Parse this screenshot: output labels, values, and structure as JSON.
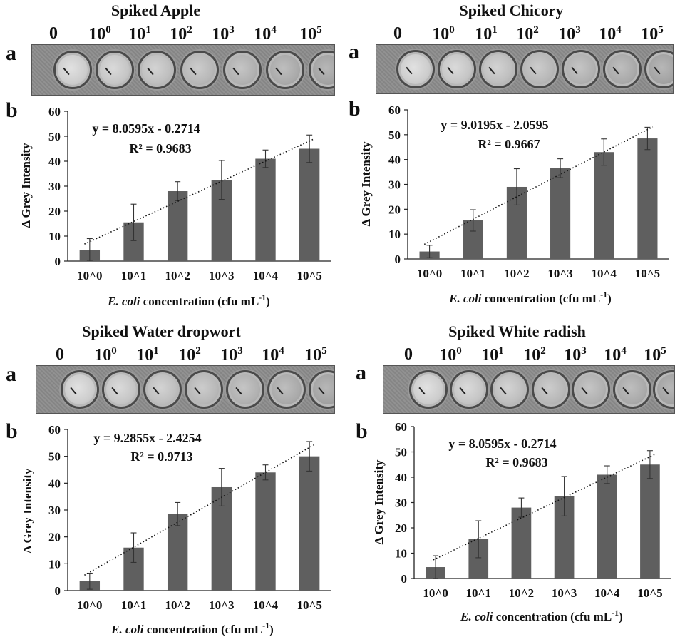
{
  "figure": {
    "letter_a": "a",
    "letter_b": "b",
    "concentration_base": "10",
    "concentration_zero": "0",
    "concentration_exponents": [
      "0",
      "1",
      "2",
      "3",
      "4",
      "5"
    ]
  },
  "chart_data": [
    {
      "type": "bar",
      "title": "Spiked Apple",
      "categories": [
        "10^0",
        "10^1",
        "10^2",
        "10^3",
        "10^4",
        "10^5"
      ],
      "values": [
        4.5,
        15.5,
        28,
        32.5,
        41,
        45
      ],
      "error": [
        4.5,
        7.3,
        3.8,
        7.8,
        3.5,
        5.5
      ],
      "ylim": [
        0,
        60
      ],
      "yticks": [
        "0",
        "10",
        "20",
        "30",
        "40",
        "50",
        "60"
      ],
      "ylabel": "Δ Grey Intensity",
      "xlabel_italic": "E. coli",
      "xlabel_rest": " concentration (cfu mL",
      "xlabel_sup": "-1",
      "xlabel_end": ")",
      "equation": "y = 8.0595x - 0.2714",
      "r_squared": "R² = 0.9683",
      "trend_slope": 8.0595,
      "trend_intercept": -0.2714,
      "bar_color": "#5f5f5f"
    },
    {
      "type": "bar",
      "title": "Spiked Chicory",
      "categories": [
        "10^0",
        "10^1",
        "10^2",
        "10^3",
        "10^4",
        "10^5"
      ],
      "values": [
        3,
        15.5,
        29,
        36.5,
        43,
        48.5
      ],
      "error": [
        2.5,
        4.3,
        7.3,
        3.8,
        5.3,
        4.5
      ],
      "ylim": [
        0,
        60
      ],
      "yticks": [
        "0",
        "10",
        "20",
        "30",
        "40",
        "50",
        "60"
      ],
      "ylabel": "Δ Grey Intensity",
      "xlabel_italic": "E. coli",
      "xlabel_rest": " concentration (cfu mL",
      "xlabel_sup": "-1",
      "xlabel_end": ")",
      "equation": "y = 9.0195x - 2.0595",
      "r_squared": "R² = 0.9667",
      "trend_slope": 9.0195,
      "trend_intercept": -2.0595,
      "bar_color": "#5f5f5f"
    },
    {
      "type": "bar",
      "title": "Spiked Water dropwort",
      "categories": [
        "10^0",
        "10^1",
        "10^2",
        "10^3",
        "10^4",
        "10^5"
      ],
      "values": [
        3.5,
        16,
        28.5,
        38.5,
        44,
        50
      ],
      "error": [
        3,
        5.5,
        4.3,
        7,
        2.8,
        5.5
      ],
      "ylim": [
        0,
        60
      ],
      "yticks": [
        "0",
        "10",
        "20",
        "30",
        "40",
        "50",
        "60"
      ],
      "ylabel": "Δ Grey Intensity",
      "xlabel_italic": "E. coli",
      "xlabel_rest": " concentration (cfu mL",
      "xlabel_sup": "-1",
      "xlabel_end": ")",
      "equation": "y = 9.2855x - 2.4254",
      "r_squared": "R² = 0.9713",
      "trend_slope": 9.2855,
      "trend_intercept": -2.4254,
      "bar_color": "#5f5f5f"
    },
    {
      "type": "bar",
      "title": "Spiked White radish",
      "categories": [
        "10^0",
        "10^1",
        "10^2",
        "10^3",
        "10^4",
        "10^5"
      ],
      "values": [
        4.5,
        15.5,
        28,
        32.5,
        41,
        45
      ],
      "error": [
        4.5,
        7.3,
        3.8,
        7.8,
        3.5,
        5.5
      ],
      "ylim": [
        0,
        60
      ],
      "yticks": [
        "0",
        "10",
        "20",
        "30",
        "40",
        "50",
        "60"
      ],
      "ylabel": "Δ Grey Intensity",
      "xlabel_italic": "E. coli",
      "xlabel_rest": " concentration (cfu mL",
      "xlabel_sup": "-1",
      "xlabel_end": ")",
      "equation": "y = 8.0595x - 0.2714",
      "r_squared": "R² = 0.9683",
      "trend_slope": 8.0595,
      "trend_intercept": -0.2714,
      "bar_color": "#5f5f5f"
    }
  ]
}
